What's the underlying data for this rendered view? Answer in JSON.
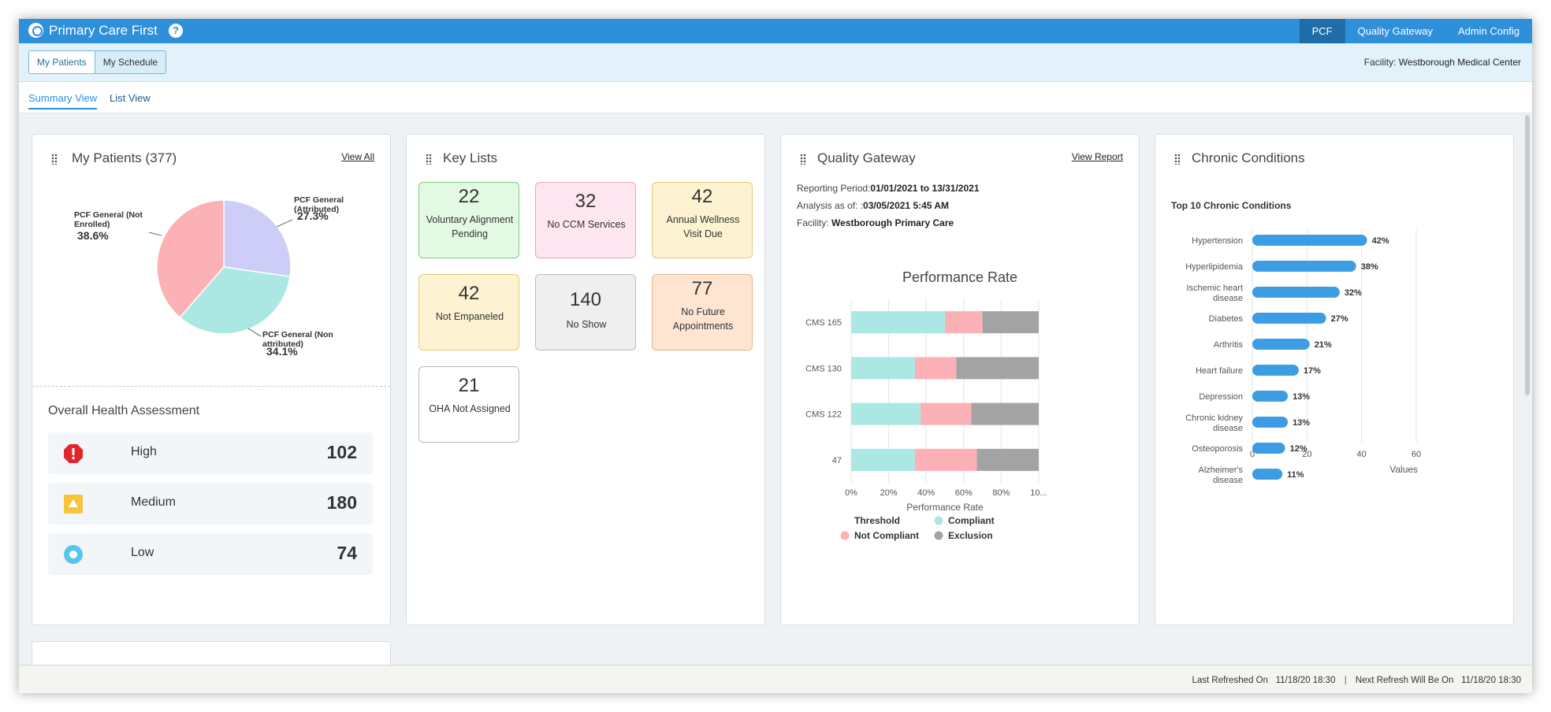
{
  "app": {
    "title": "Primary Care First",
    "nav": [
      "PCF",
      "Quality Gateway",
      "Admin Config"
    ],
    "facility_label": "Facility:",
    "facility_value": "Westborough Medical Center"
  },
  "subheader": {
    "buttons": [
      "My Patients",
      "My Schedule"
    ]
  },
  "tabs": [
    "Summary View",
    "List View"
  ],
  "my_patients": {
    "title": "My Patients (377)",
    "view_all": "View All",
    "pie": [
      {
        "label": "PCF General (Attributed)",
        "percent": "27.3%",
        "value": 27.3,
        "color": "#cdcdf7"
      },
      {
        "label": "PCF General (Non attributed)",
        "percent": "34.1%",
        "value": 34.1,
        "color": "#abe8e3"
      },
      {
        "label": "PCF General (Not Enrolled)",
        "percent": "38.6%",
        "value": 38.6,
        "color": "#fbb1b5"
      }
    ],
    "oha_title": "Overall Health Assessment",
    "oha": [
      {
        "label": "High",
        "value": "102",
        "icon": "alert-icon",
        "color": "#e1242d"
      },
      {
        "label": "Medium",
        "value": "180",
        "icon": "warning-triangle-icon",
        "color": "#f5c53b"
      },
      {
        "label": "Low",
        "value": "74",
        "icon": "circle-icon",
        "color": "#55c6ec"
      }
    ]
  },
  "key_lists": {
    "title": "Key Lists",
    "tiles": [
      {
        "value": "22",
        "label": "Voluntary Alignment Pending",
        "bg": "#e4f9e4",
        "border": "#7bcf7b"
      },
      {
        "value": "32",
        "label": "No CCM Services",
        "bg": "#fde6f0",
        "border": "#e9a5c3"
      },
      {
        "value": "42",
        "label": "Annual Wellness Visit Due",
        "bg": "#fdf3d3",
        "border": "#e5c97a"
      },
      {
        "value": "42",
        "label": "Not Empaneled",
        "bg": "#fdf3d3",
        "border": "#e5c97a"
      },
      {
        "value": "140",
        "label": "No Show",
        "bg": "#efefef",
        "border": "#bdbdbd"
      },
      {
        "value": "77",
        "label": "No Future Appointments",
        "bg": "#fde5d2",
        "border": "#e9b48a"
      },
      {
        "value": "21",
        "label": "OHA Not Assigned",
        "bg": "#ffffff",
        "border": "#b9b9b9"
      }
    ]
  },
  "quality_gateway": {
    "title": "Quality Gateway",
    "view_report": "View Report",
    "reporting_period_label": "Reporting Period:",
    "reporting_period_value": "01/01/2021 to 13/31/2021",
    "analysis_label": "Analysis as of: :",
    "analysis_value": "03/05/2021 5:45 AM",
    "facility_label": "Facility:",
    "facility_value": "Westborough Primary Care"
  },
  "chronic": {
    "title": "Chronic Conditions",
    "subtitle": "Top 10 Chronic Conditions"
  },
  "footer": {
    "last_label": "Last Refreshed On",
    "last_value": "11/18/20 18:30",
    "next_label": "Next Refresh Will Be On",
    "next_value": "11/18/20 18:30"
  },
  "chart_data": [
    {
      "type": "bar",
      "title": "Performance Rate",
      "orientation": "horizontal",
      "stacked": true,
      "categories": [
        "CMS 165",
        "CMS 130",
        "CMS 122",
        "47"
      ],
      "series": [
        {
          "name": "Compliant",
          "color": "#abe8e3",
          "values": [
            50,
            34,
            37,
            34
          ]
        },
        {
          "name": "Not Compliant",
          "color": "#fbb1b5",
          "values": [
            20,
            22,
            27,
            33
          ]
        },
        {
          "name": "Exclusion",
          "color": "#a3a3a3",
          "values": [
            30,
            44,
            36,
            33
          ]
        }
      ],
      "xticks": [
        "0%",
        "20%",
        "40%",
        "60%",
        "80%",
        "10..."
      ],
      "xlabel": "Performance Rate",
      "xlim": [
        0,
        100
      ],
      "legend": [
        "Threshold",
        "Compliant",
        "Not Compliant",
        "Exclusion"
      ],
      "legend_placement": "bottom",
      "grid": true
    },
    {
      "type": "bar",
      "orientation": "horizontal",
      "title": "Top 10 Chronic Conditions",
      "categories": [
        "Hypertension",
        "Hyperlipidemia",
        "Ischemic heart disease",
        "Diabetes",
        "Arthritis",
        "Heart failure",
        "Depression",
        "Chronic kidney disease",
        "Osteoporosis",
        "Alzheimer's disease"
      ],
      "category_lines": [
        [
          "Hypertension"
        ],
        [
          "Hyperlipidemia"
        ],
        [
          "Ischemic heart",
          "disease"
        ],
        [
          "Diabetes"
        ],
        [
          "Arthritis"
        ],
        [
          "Heart failure"
        ],
        [
          "Depression"
        ],
        [
          "Chronic kidney",
          "disease"
        ],
        [
          "Osteoporosis"
        ],
        [
          "Alzheimer's",
          "disease"
        ]
      ],
      "values": [
        42,
        38,
        32,
        27,
        21,
        17,
        13,
        13,
        12,
        11
      ],
      "data_labels": [
        "42%",
        "38%",
        "32%",
        "27%",
        "21%",
        "17%",
        "13%",
        "13%",
        "12%",
        "11%"
      ],
      "xticks": [
        "0",
        "20",
        "40",
        "60"
      ],
      "xlabel": "Values",
      "xlim": [
        0,
        60
      ],
      "grid": true,
      "color": "#3d9de4"
    }
  ]
}
